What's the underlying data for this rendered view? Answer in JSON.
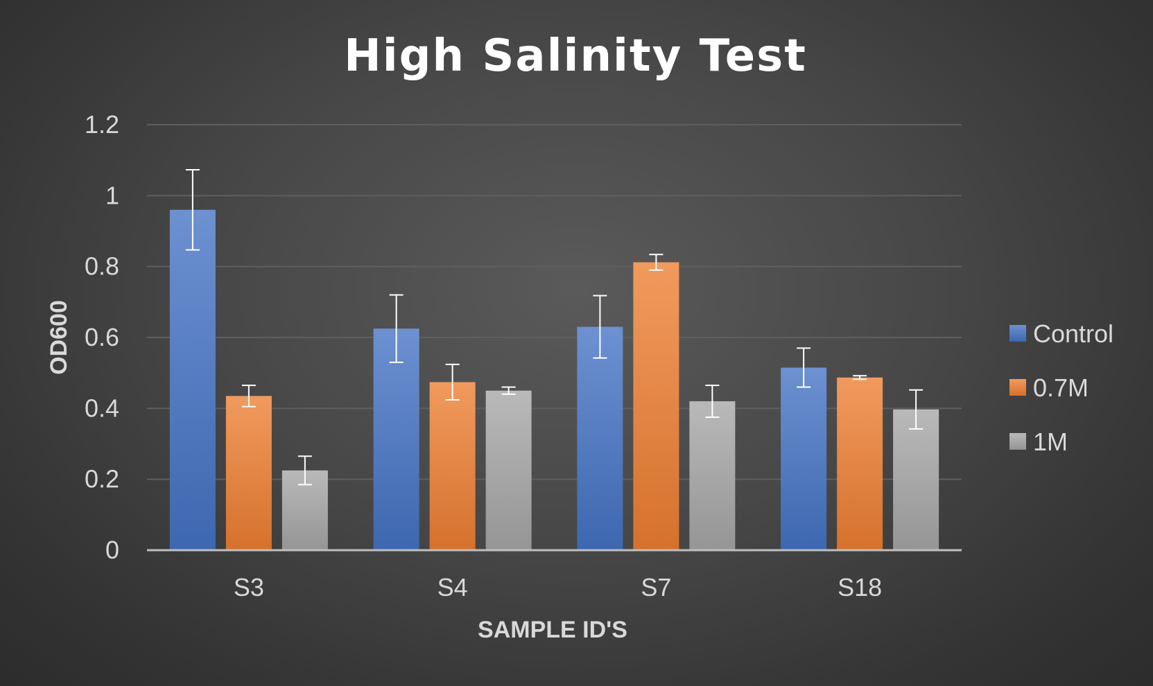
{
  "chart_data": {
    "type": "bar",
    "title": "High Salinity Test",
    "xlabel": "SAMPLE ID'S",
    "ylabel": "OD600",
    "categories": [
      "S3",
      "S4",
      "S7",
      "S18"
    ],
    "ylim": [
      0,
      1.2
    ],
    "yticks": [
      0,
      0.2,
      0.4,
      0.6,
      0.8,
      1,
      1.2
    ],
    "ytick_labels": [
      "0",
      "0.2",
      "0.4",
      "0.6",
      "0.8",
      "1",
      "1.2"
    ],
    "grid": true,
    "legend_position": "right",
    "series": [
      {
        "name": "Control",
        "color": "#4472c4",
        "values": [
          0.96,
          0.625,
          0.63,
          0.515
        ],
        "errors": [
          0.113,
          0.095,
          0.088,
          0.055
        ]
      },
      {
        "name": "0.7M",
        "color": "#ed7d31",
        "values": [
          0.435,
          0.474,
          0.812,
          0.487
        ],
        "errors": [
          0.03,
          0.05,
          0.022,
          0.005
        ]
      },
      {
        "name": "1M",
        "color": "#a5a5a5",
        "values": [
          0.225,
          0.45,
          0.42,
          0.397
        ],
        "errors": [
          0.04,
          0.01,
          0.045,
          0.055
        ]
      }
    ]
  }
}
